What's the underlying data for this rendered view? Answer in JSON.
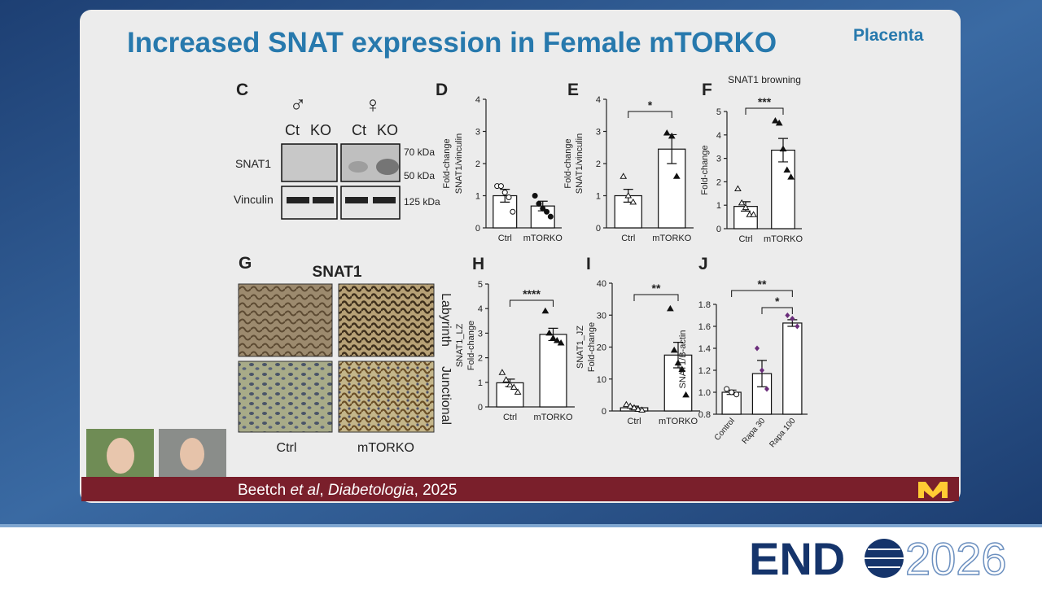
{
  "slide": {
    "title": "Increased SNAT expression in Female mTORKO",
    "title_sup": "Placenta",
    "panel_c": {
      "letter": "C",
      "male": "♂",
      "female": "♀",
      "lanes": [
        "Ct",
        "KO",
        "Ct",
        "KO"
      ],
      "rows": [
        "SNAT1",
        "Vinculin"
      ],
      "markers": [
        "70 kDa",
        "50 kDa",
        "125 kDa"
      ]
    },
    "panel_g": {
      "letter": "G",
      "title": "SNAT1",
      "rows": [
        "Labyrinth",
        "Junctional"
      ],
      "columns": [
        "Ctrl",
        "mTORKO"
      ]
    },
    "citation": {
      "author": "Beetch ",
      "etal": "et al",
      "sep": ", ",
      "journal": "Diabetologia",
      "year": ", 2025"
    },
    "logo": {
      "left": "END",
      "right": "2026"
    }
  },
  "chart_data": [
    {
      "type": "bar",
      "panel": "D",
      "ylabel": [
        "Fold-change",
        "SNAT1/vinculin"
      ],
      "categories": [
        "Ctrl",
        "mTORKO"
      ],
      "values": [
        1.0,
        0.68
      ],
      "errors": [
        0.2,
        0.15
      ],
      "points": [
        [
          1.3,
          1.3,
          1.1,
          0.95,
          0.5
        ],
        [
          1.0,
          0.75,
          0.6,
          0.5,
          0.35
        ]
      ],
      "ylim": [
        0,
        4
      ],
      "yticks": [
        0,
        1,
        2,
        3,
        4
      ],
      "significance": []
    },
    {
      "type": "bar",
      "panel": "E",
      "ylabel": [
        "Fold-change",
        "SNAT1/vinculin"
      ],
      "categories": [
        "Ctrl",
        "mTORKO"
      ],
      "values": [
        1.0,
        2.45
      ],
      "errors": [
        0.2,
        0.45
      ],
      "points": [
        [
          1.6,
          1.0,
          0.8
        ],
        [
          2.95,
          2.85,
          1.6
        ]
      ],
      "ylim": [
        0,
        4
      ],
      "yticks": [
        0,
        1,
        2,
        3,
        4
      ],
      "significance": [
        "*"
      ]
    },
    {
      "type": "bar",
      "panel": "F",
      "title": "SNAT1 browning",
      "ylabel": [
        "Fold-change"
      ],
      "categories": [
        "Ctrl",
        "mTORKO"
      ],
      "values": [
        0.95,
        3.35
      ],
      "errors": [
        0.2,
        0.5
      ],
      "points": [
        [
          1.7,
          1.1,
          0.9,
          0.6,
          0.6
        ],
        [
          4.6,
          4.5,
          3.4,
          2.5,
          2.2
        ]
      ],
      "ylim": [
        0,
        5
      ],
      "yticks": [
        0,
        1,
        2,
        3,
        4,
        5
      ],
      "significance": [
        "***"
      ]
    },
    {
      "type": "bar",
      "panel": "H",
      "ylabel": [
        "SNAT1_LZ",
        "Fold-change"
      ],
      "categories": [
        "Ctrl",
        "mTORKO"
      ],
      "values": [
        0.98,
        2.95
      ],
      "errors": [
        0.15,
        0.25
      ],
      "points": [
        [
          1.4,
          1.1,
          0.9,
          0.8,
          0.6
        ],
        [
          3.9,
          3.0,
          2.8,
          2.7,
          2.6
        ]
      ],
      "ylim": [
        0,
        5
      ],
      "yticks": [
        0,
        1,
        2,
        3,
        4,
        5
      ],
      "significance": [
        "****"
      ]
    },
    {
      "type": "bar",
      "panel": "I",
      "ylabel": [
        "SNAT1_JZ",
        "Fold-change"
      ],
      "categories": [
        "Ctrl",
        "mTORKO"
      ],
      "values": [
        1,
        17.5
      ],
      "errors": [
        0.5,
        4
      ],
      "points": [
        [
          2,
          1.5,
          1,
          0.5,
          0.3
        ],
        [
          32,
          19,
          15,
          13,
          5
        ]
      ],
      "ylim": [
        0,
        40
      ],
      "yticks": [
        0,
        10,
        20,
        30,
        40
      ],
      "significance": [
        "**"
      ]
    },
    {
      "type": "bar",
      "panel": "J",
      "ylabel": [
        "SNAT1/B-actin"
      ],
      "categories": [
        "Control",
        "Rapa 30",
        "Rapa 100"
      ],
      "values": [
        1.0,
        1.17,
        1.63
      ],
      "errors": [
        0.02,
        0.12,
        0.03
      ],
      "points": [
        [
          1.03,
          1.0,
          0.98
        ],
        [
          1.4,
          1.2,
          1.03
        ],
        [
          1.7,
          1.67,
          1.6
        ]
      ],
      "ylim": [
        0.8,
        1.8
      ],
      "yticks": [
        0.8,
        {
          "value": 1.0,
          "label": "1.0"
        },
        1.2,
        1.4,
        1.6,
        1.8
      ],
      "significance": [
        "**",
        "*"
      ]
    }
  ]
}
